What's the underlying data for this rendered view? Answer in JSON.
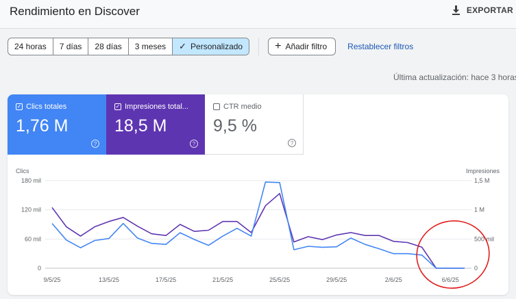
{
  "header": {
    "title": "Rendimiento en Discover",
    "export_label": "EXPORTAR"
  },
  "filters": {
    "ranges": [
      "24 horas",
      "7 días",
      "28 días",
      "3 meses",
      "Personalizado"
    ],
    "active_range": "Personalizado",
    "add_filter_label": "Añadir filtro",
    "reset_label": "Restablecer filtros"
  },
  "last_update": "Última actualización: hace 3 horas",
  "metrics": {
    "clicks": {
      "label": "Clics totales",
      "value": "1,76 M",
      "checked": true
    },
    "impressions": {
      "label": "Impresiones total...",
      "value": "18,5 M",
      "checked": true
    },
    "ctr": {
      "label": "CTR medio",
      "value": "9,5 %",
      "checked": false
    }
  },
  "colors": {
    "clicks": "#4285f4",
    "impressions": "#5e35b1",
    "accent_link": "#1a57b5",
    "active_segment": "#c2e7ff",
    "annotation_circle": "#e01b1b"
  },
  "chart_data": {
    "type": "line",
    "left_axis_label": "Clics",
    "right_axis_label": "Impresiones",
    "left_ticks": [
      "0",
      "60 mil",
      "120 mil",
      "180 mil"
    ],
    "left_tick_values": [
      0,
      60000,
      120000,
      180000
    ],
    "right_ticks": [
      "0",
      "500 mil",
      "1 M",
      "1,5 M"
    ],
    "right_tick_values": [
      0,
      500000,
      1000000,
      1500000
    ],
    "left_ylim": [
      0,
      180000
    ],
    "right_ylim": [
      0,
      1500000
    ],
    "x_ticks": [
      "9/5/25",
      "13/5/25",
      "17/5/25",
      "21/5/25",
      "25/5/25",
      "29/5/25",
      "2/6/25",
      "6/6/25"
    ],
    "x_tick_index": [
      0,
      4,
      8,
      12,
      16,
      20,
      24,
      28
    ],
    "grid": true,
    "series": [
      {
        "name": "Clics totales",
        "axis": "left",
        "values": [
          92000,
          58000,
          42000,
          57000,
          61000,
          92000,
          62000,
          51000,
          49000,
          73000,
          59000,
          47000,
          66000,
          82000,
          66000,
          177000,
          176000,
          38000,
          45000,
          43000,
          44000,
          62000,
          49000,
          40000,
          30000,
          30000,
          27000,
          0,
          0,
          0
        ]
      },
      {
        "name": "Impresiones totales",
        "axis": "right",
        "values": [
          1040000,
          710000,
          550000,
          710000,
          800000,
          870000,
          720000,
          590000,
          560000,
          750000,
          630000,
          650000,
          800000,
          800000,
          610000,
          1070000,
          1280000,
          450000,
          540000,
          490000,
          570000,
          610000,
          560000,
          560000,
          460000,
          440000,
          360000,
          0,
          0,
          0
        ]
      }
    ]
  }
}
